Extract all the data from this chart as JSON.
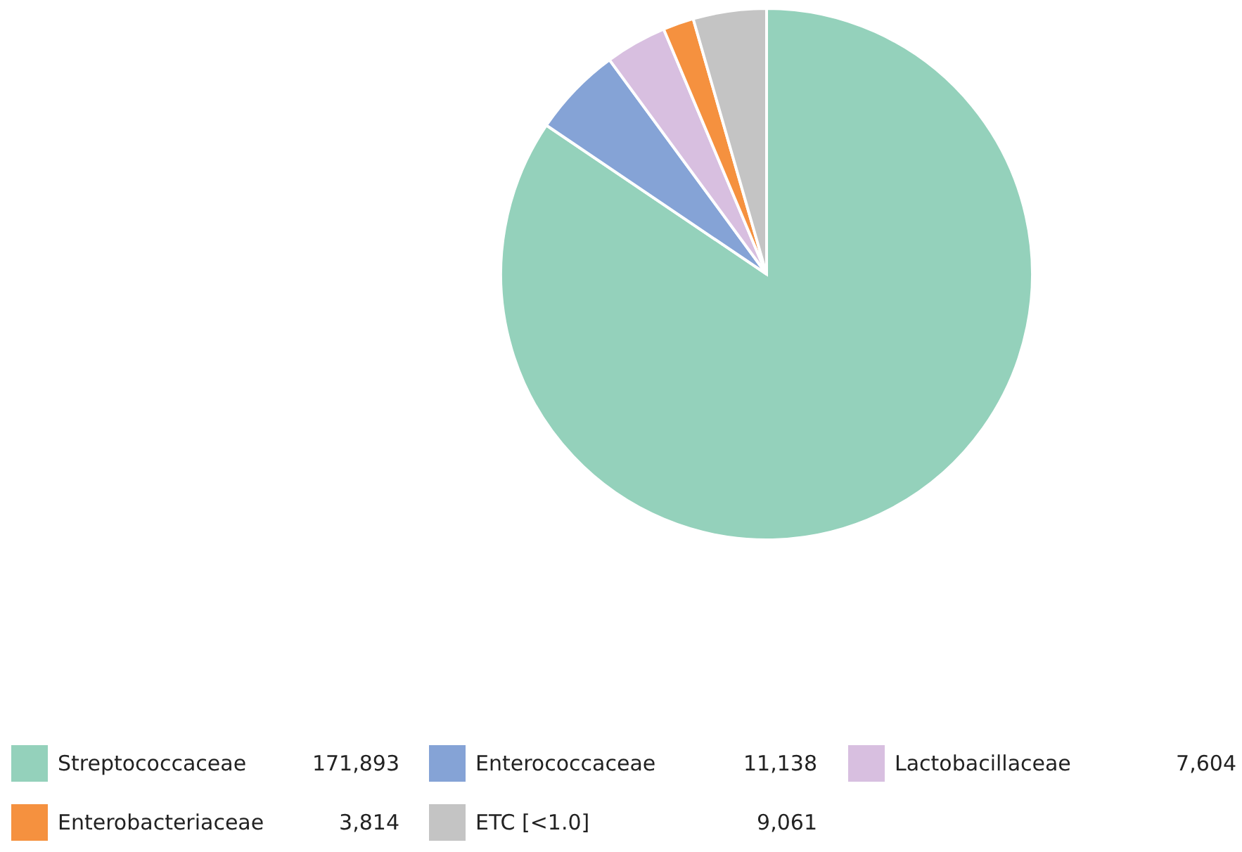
{
  "chart_data": {
    "type": "pie",
    "categories": [
      "Streptococcaceae",
      "Enterococcaceae",
      "Lactobacillaceae",
      "Enterobacteriaceae",
      "ETC [<1.0]"
    ],
    "values": [
      171893,
      11138,
      7604,
      3814,
      9061
    ],
    "colors": [
      "#94d1bb",
      "#85a3d6",
      "#d8bfe0",
      "#f5913f",
      "#c4c4c4"
    ],
    "value_labels": [
      "171,893",
      "11,138",
      "7,604",
      "3,814",
      "9,061"
    ],
    "legend": "bottom"
  }
}
